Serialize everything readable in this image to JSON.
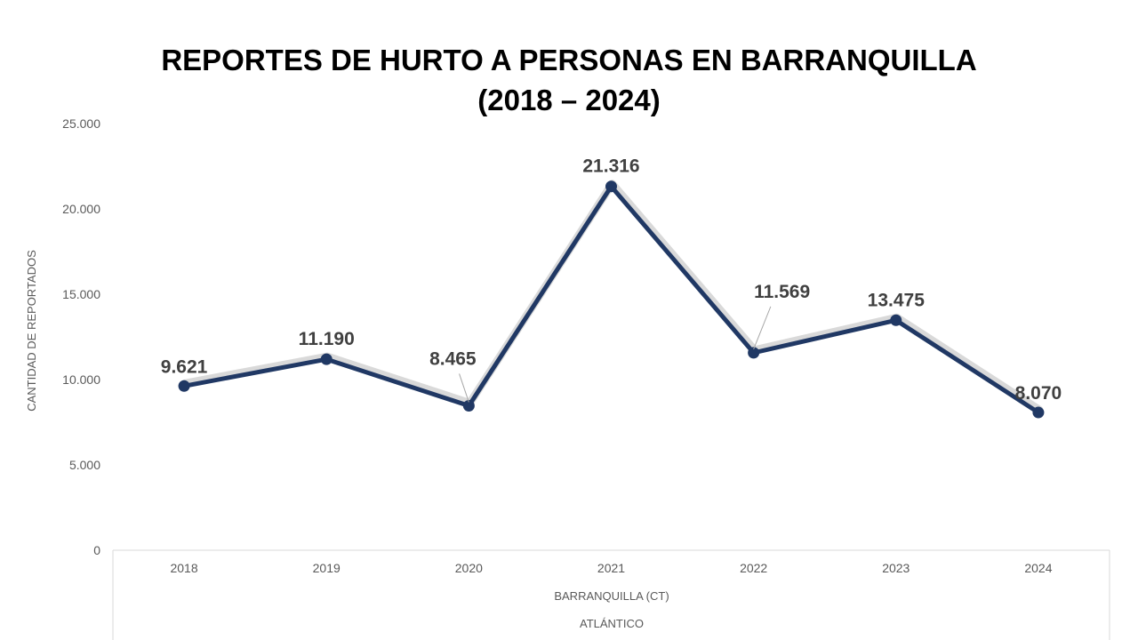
{
  "chart_data": {
    "type": "line",
    "title": "REPORTES DE HURTO A PERSONAS EN BARRANQUILLA",
    "subtitle": "(2018 – 2024)",
    "ylabel": "CANTIDAD DE REPORTADOS",
    "xlabel": "BARRANQUILLA (CT)",
    "xlabel_group": "ATLÁNTICO",
    "categories": [
      "2018",
      "2019",
      "2020",
      "2021",
      "2022",
      "2023",
      "2024"
    ],
    "series": [
      {
        "values": [
          9621,
          11190,
          8465,
          21316,
          11569,
          13475,
          8070
        ],
        "data_labels": [
          "9.621",
          "11.190",
          "8.465",
          "21.316",
          "11.569",
          "13.475",
          "8.070"
        ],
        "color": "#203864"
      }
    ],
    "ylim": [
      0,
      25000
    ],
    "y_ticks": [
      0,
      5000,
      10000,
      15000,
      20000,
      25000
    ],
    "y_tick_labels": [
      "0",
      "5.000",
      "10.000",
      "15.000",
      "20.000",
      "25.000"
    ],
    "grid": false,
    "legend": "none"
  }
}
